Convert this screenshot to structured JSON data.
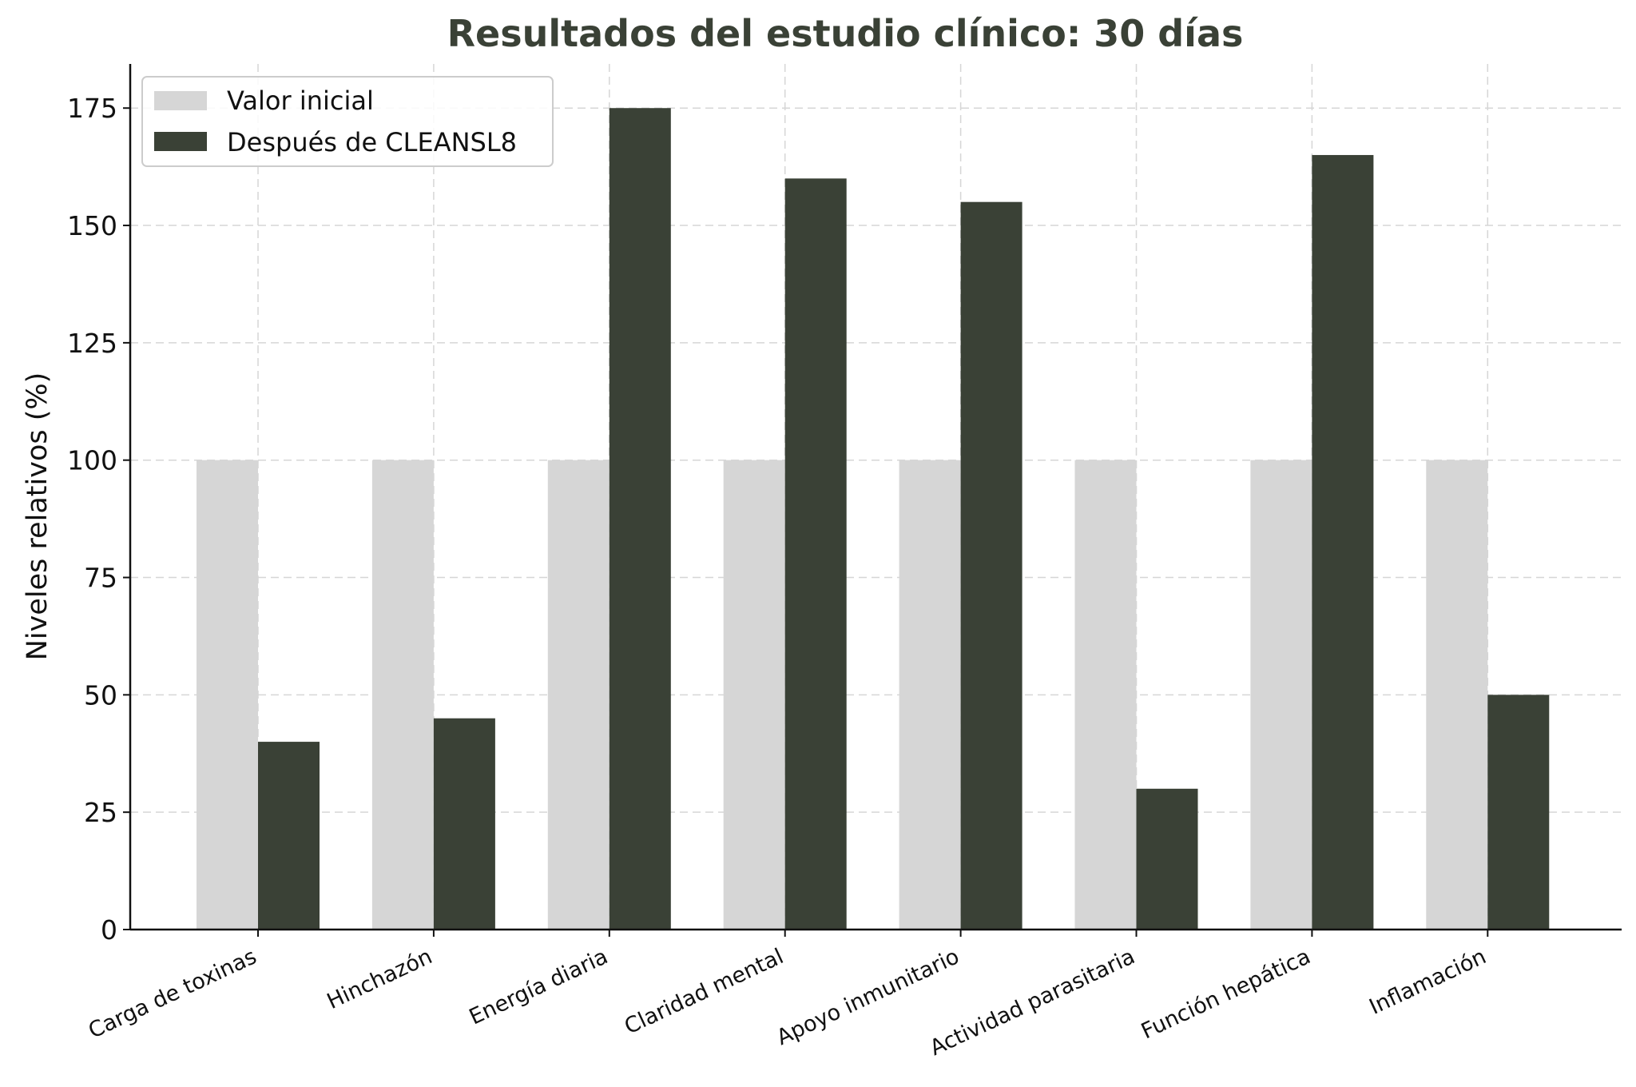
{
  "chart_data": {
    "type": "bar",
    "title": "Resultados del estudio clínico: 30 días",
    "xlabel": "",
    "ylabel": "Niveles relativos (%)",
    "ylim": [
      0,
      185
    ],
    "yticks": [
      0,
      25,
      50,
      75,
      100,
      125,
      150,
      175
    ],
    "grid": true,
    "legend_position": "top-left",
    "categories": [
      "Carga de toxinas",
      "Hinchazón",
      "Energía diaria",
      "Claridad mental",
      "Apoyo inmunitario",
      "Actividad parasitaria",
      "Función hepática",
      "Inflamación"
    ],
    "series": [
      {
        "name": "Valor inicial",
        "color": "#d6d6d6",
        "values": [
          100,
          100,
          100,
          100,
          100,
          100,
          100,
          100
        ]
      },
      {
        "name": "Después de CLEANSL8",
        "color": "#3a4136",
        "values": [
          40,
          45,
          175,
          160,
          155,
          30,
          165,
          50
        ]
      }
    ]
  }
}
